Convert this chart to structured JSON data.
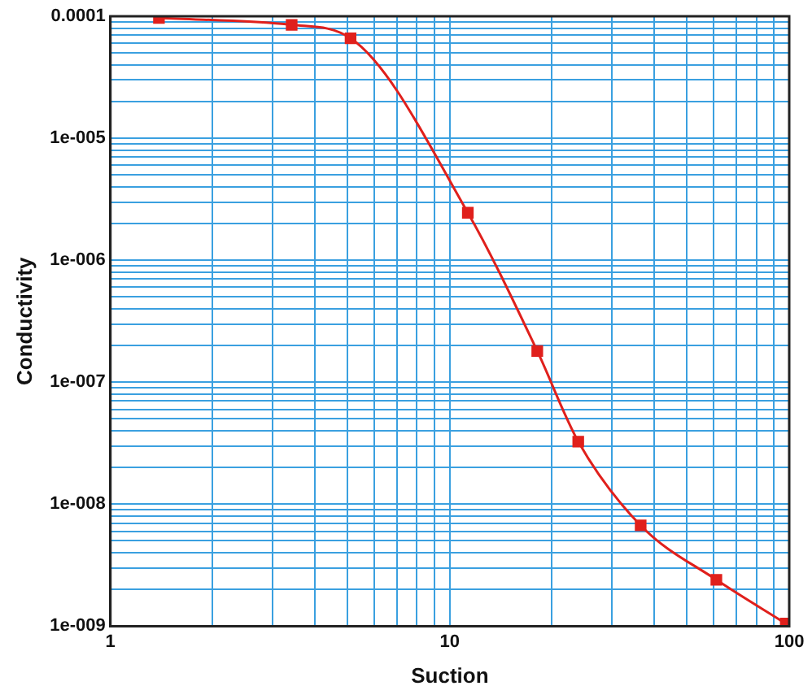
{
  "chart_data": {
    "type": "line",
    "xlabel": "Suction",
    "ylabel": "Conductivity",
    "x": [
      1.39,
      3.42,
      5.1,
      11.3,
      18.1,
      23.9,
      36.5,
      61,
      97.7
    ],
    "series": [
      {
        "color": "#e0201c",
        "values": [
          9.7e-05,
          8.5e-05,
          6.6e-05,
          2.45e-06,
          1.8e-07,
          3.26e-08,
          6.7e-09,
          2.4e-09,
          1.05e-09
        ]
      }
    ],
    "log": "xy",
    "grid": true,
    "legend": false,
    "marker": "square",
    "line_style": "solid",
    "xlim": [
      1,
      100
    ],
    "ylim": [
      1e-09,
      0.0001
    ],
    "xticks": [
      1,
      {
        "value": 2,
        "label": null
      },
      {
        "value": 3,
        "label": null
      },
      {
        "value": 4,
        "label": null
      },
      {
        "value": 5,
        "label": null
      },
      {
        "value": 6,
        "label": null
      },
      {
        "value": 7,
        "label": null
      },
      {
        "value": 8,
        "label": null
      },
      {
        "value": 9,
        "label": null
      },
      10,
      {
        "value": 20,
        "label": null
      },
      {
        "value": 30,
        "label": null
      },
      {
        "value": 40,
        "label": null
      },
      {
        "value": 50,
        "label": null
      },
      {
        "value": 60,
        "label": null
      },
      {
        "value": 70,
        "label": null
      },
      {
        "value": 80,
        "label": null
      },
      {
        "value": 90,
        "label": null
      },
      100
    ],
    "yticks": [
      {
        "value": 1e-09,
        "label": "1e-009"
      },
      {
        "value": 2e-09,
        "label": null
      },
      {
        "value": 3e-09,
        "label": null
      },
      {
        "value": 4e-09,
        "label": null
      },
      {
        "value": 5e-09,
        "label": null
      },
      {
        "value": 6e-09,
        "label": null
      },
      {
        "value": 7e-09,
        "label": null
      },
      {
        "value": 8e-09,
        "label": null
      },
      {
        "value": 9e-09,
        "label": null
      },
      {
        "value": 1e-08,
        "label": "1e-008"
      },
      {
        "value": 2e-08,
        "label": null
      },
      {
        "value": 3e-08,
        "label": null
      },
      {
        "value": 4e-08,
        "label": null
      },
      {
        "value": 5e-08,
        "label": null
      },
      {
        "value": 6e-08,
        "label": null
      },
      {
        "value": 7e-08,
        "label": null
      },
      {
        "value": 8e-08,
        "label": null
      },
      {
        "value": 9e-08,
        "label": null
      },
      {
        "value": 1e-07,
        "label": "1e-007"
      },
      {
        "value": 2e-07,
        "label": null
      },
      {
        "value": 3e-07,
        "label": null
      },
      {
        "value": 4e-07,
        "label": null
      },
      {
        "value": 5e-07,
        "label": null
      },
      {
        "value": 6e-07,
        "label": null
      },
      {
        "value": 7e-07,
        "label": null
      },
      {
        "value": 8e-07,
        "label": null
      },
      {
        "value": 9e-07,
        "label": null
      },
      {
        "value": 1e-06,
        "label": "1e-006"
      },
      {
        "value": 2e-06,
        "label": null
      },
      {
        "value": 3e-06,
        "label": null
      },
      {
        "value": 4e-06,
        "label": null
      },
      {
        "value": 5e-06,
        "label": null
      },
      {
        "value": 6e-06,
        "label": null
      },
      {
        "value": 7e-06,
        "label": null
      },
      {
        "value": 8e-06,
        "label": null
      },
      {
        "value": 9e-06,
        "label": null
      },
      {
        "value": 1e-05,
        "label": "1e-005"
      },
      {
        "value": 2e-05,
        "label": null
      },
      {
        "value": 3e-05,
        "label": null
      },
      {
        "value": 4e-05,
        "label": null
      },
      {
        "value": 5e-05,
        "label": null
      },
      {
        "value": 6e-05,
        "label": null
      },
      {
        "value": 7e-05,
        "label": null
      },
      {
        "value": 8e-05,
        "label": null
      },
      {
        "value": 9e-05,
        "label": null
      },
      {
        "value": 0.0001,
        "label": "0.0001"
      }
    ]
  }
}
